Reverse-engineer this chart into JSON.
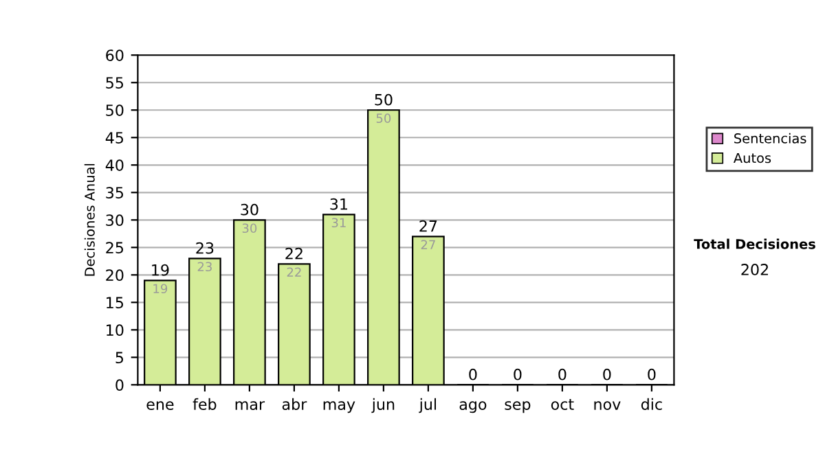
{
  "chart_data": {
    "type": "bar",
    "ylabel": "Decisiones Anual",
    "categories": [
      "ene",
      "feb",
      "mar",
      "abr",
      "may",
      "jun",
      "jul",
      "ago",
      "sep",
      "oct",
      "nov",
      "dic"
    ],
    "stacked": true,
    "series": [
      {
        "name": "Sentencias",
        "color": "#dd88cc",
        "values": [
          0,
          0,
          0,
          0,
          0,
          0,
          0,
          0,
          0,
          0,
          0,
          0
        ]
      },
      {
        "name": "Autos",
        "color": "#d4ec98",
        "values": [
          19,
          23,
          30,
          22,
          31,
          50,
          27,
          0,
          0,
          0,
          0,
          0
        ],
        "value_labels": [
          "19",
          "23",
          "30",
          "22",
          "31",
          "50",
          "27",
          null,
          null,
          null,
          null,
          null
        ]
      }
    ],
    "totals": [
      "19",
      "23",
      "30",
      "22",
      "31",
      "50",
      "27",
      "0",
      "0",
      "0",
      "0",
      "0"
    ],
    "ylim": [
      0,
      60
    ],
    "yticks": [
      0,
      5,
      10,
      15,
      20,
      25,
      30,
      35,
      40,
      45,
      50,
      55,
      60
    ],
    "grid": "y",
    "legend": "right",
    "annotations": [
      "Total Decisiones",
      "202"
    ]
  }
}
